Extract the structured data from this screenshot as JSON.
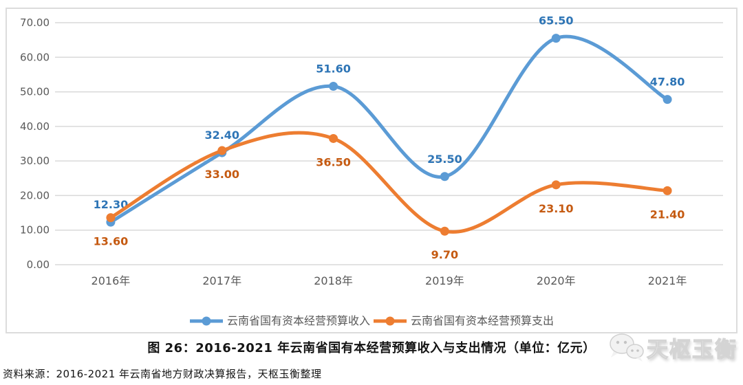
{
  "chart_data": {
    "type": "line",
    "smoothed": true,
    "categories": [
      "2016年",
      "2017年",
      "2018年",
      "2019年",
      "2020年",
      "2021年"
    ],
    "series": [
      {
        "name": "云南省国有资本经营预算收入",
        "color": "#5B9BD5",
        "label_color": "#2E75B6",
        "values": [
          12.3,
          32.4,
          51.6,
          25.5,
          65.5,
          47.8
        ],
        "labels": [
          "12.30",
          "32.40",
          "51.60",
          "25.50",
          "65.50",
          "47.80"
        ],
        "label_position": "above"
      },
      {
        "name": "云南省国有资本经营预算支出",
        "color": "#ED7D31",
        "label_color": "#C55A11",
        "values": [
          13.6,
          33.0,
          36.5,
          9.7,
          23.1,
          21.4
        ],
        "labels": [
          "13.60",
          "33.00",
          "36.50",
          "9.70",
          "23.10",
          "21.40"
        ],
        "label_position": "below"
      }
    ],
    "ylim": [
      0,
      70
    ],
    "y_tick_step": 10,
    "y_ticks": [
      "0.00",
      "10.00",
      "20.00",
      "30.00",
      "40.00",
      "50.00",
      "60.00",
      "70.00"
    ],
    "xlabel": "",
    "ylabel": "",
    "grid": "horizontal",
    "legend_position": "bottom",
    "grid_color": "#d9d9d9",
    "axis_text_color": "#595959"
  },
  "caption": {
    "title": "图 26：2016-2021 年云南省国有本经营预算收入与支出情况（单位：亿元）"
  },
  "source": {
    "text": "资料来源：2016-2021 年云南省地方财政决算报告，天枢玉衡整理"
  },
  "watermark": {
    "text": "天枢玉衡",
    "icon": "wechat-icon"
  }
}
